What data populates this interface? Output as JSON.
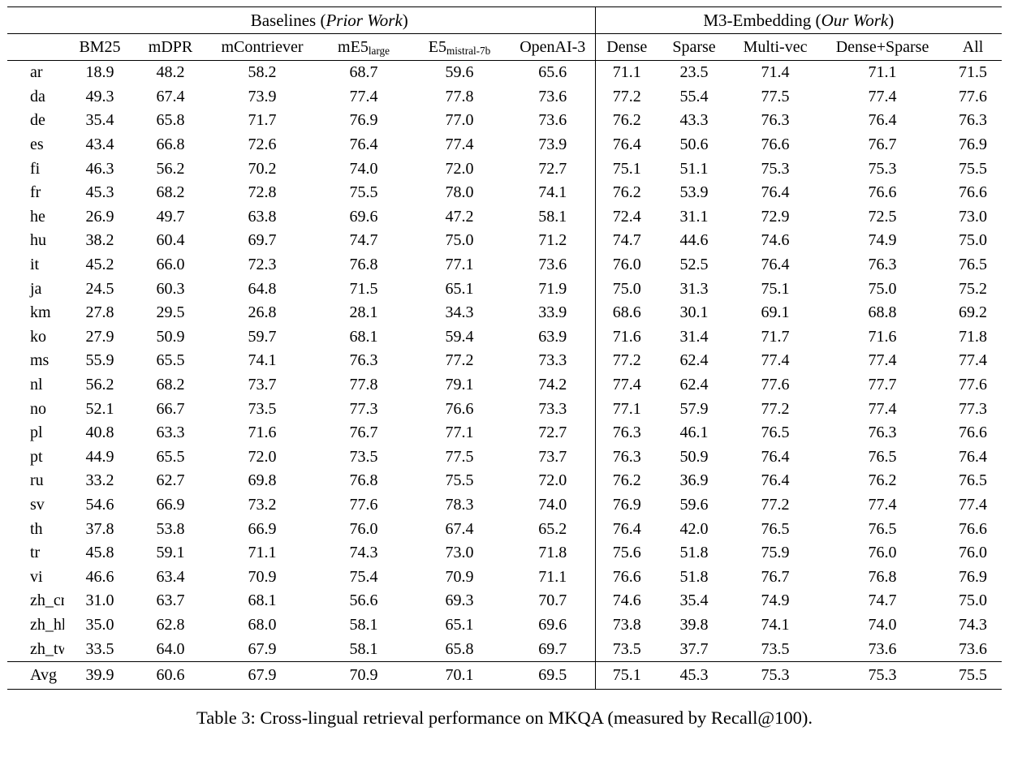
{
  "caption": "Table 3: Cross-lingual retrieval performance on MKQA (measured by Recall@100).",
  "colors": {
    "text": "#000000",
    "background": "#ffffff",
    "rule": "#000000"
  },
  "table": {
    "group_headers": [
      {
        "prefix": "Baselines (",
        "italic": "Prior Work",
        "suffix": ")"
      },
      {
        "prefix": "M3-Embedding (",
        "italic": "Our Work",
        "suffix": ")"
      }
    ],
    "corner_label": "",
    "columns": [
      {
        "label": "BM25",
        "sub": ""
      },
      {
        "label": "mDPR",
        "sub": ""
      },
      {
        "label": "mContriever",
        "sub": ""
      },
      {
        "label": "mE5",
        "sub": "large"
      },
      {
        "label": "E5",
        "sub": "mistral-7b"
      },
      {
        "label": "OpenAI-3",
        "sub": ""
      },
      {
        "label": "Dense",
        "sub": ""
      },
      {
        "label": "Sparse",
        "sub": ""
      },
      {
        "label": "Multi-vec",
        "sub": ""
      },
      {
        "label": "Dense+Sparse",
        "sub": ""
      },
      {
        "label": "All",
        "sub": ""
      }
    ],
    "rows": [
      {
        "lang": "ar",
        "values": [
          "18.9",
          "48.2",
          "58.2",
          "68.7",
          "59.6",
          "65.6",
          "71.1",
          "23.5",
          "71.4",
          "71.1",
          "71.5"
        ],
        "bold": [
          10
        ]
      },
      {
        "lang": "da",
        "values": [
          "49.3",
          "67.4",
          "73.9",
          "77.4",
          "77.8",
          "73.6",
          "77.2",
          "55.4",
          "77.5",
          "77.4",
          "77.6"
        ],
        "bold": [
          4
        ]
      },
      {
        "lang": "de",
        "values": [
          "35.4",
          "65.8",
          "71.7",
          "76.9",
          "77.0",
          "73.6",
          "76.2",
          "43.3",
          "76.3",
          "76.4",
          "76.3"
        ],
        "bold": [
          4
        ]
      },
      {
        "lang": "es",
        "values": [
          "43.4",
          "66.8",
          "72.6",
          "76.4",
          "77.4",
          "73.9",
          "76.4",
          "50.6",
          "76.6",
          "76.7",
          "76.9"
        ],
        "bold": [
          4
        ]
      },
      {
        "lang": "fi",
        "values": [
          "46.3",
          "56.2",
          "70.2",
          "74.0",
          "72.0",
          "72.7",
          "75.1",
          "51.1",
          "75.3",
          "75.3",
          "75.5"
        ],
        "bold": [
          10
        ]
      },
      {
        "lang": "fr",
        "values": [
          "45.3",
          "68.2",
          "72.8",
          "75.5",
          "78.0",
          "74.1",
          "76.2",
          "53.9",
          "76.4",
          "76.6",
          "76.6"
        ],
        "bold": [
          4
        ]
      },
      {
        "lang": "he",
        "values": [
          "26.9",
          "49.7",
          "63.8",
          "69.6",
          "47.2",
          "58.1",
          "72.4",
          "31.1",
          "72.9",
          "72.5",
          "73.0"
        ],
        "bold": [
          10
        ]
      },
      {
        "lang": "hu",
        "values": [
          "38.2",
          "60.4",
          "69.7",
          "74.7",
          "75.0",
          "71.2",
          "74.7",
          "44.6",
          "74.6",
          "74.9",
          "75.0"
        ],
        "bold": [
          4,
          10
        ]
      },
      {
        "lang": "it",
        "values": [
          "45.2",
          "66.0",
          "72.3",
          "76.8",
          "77.1",
          "73.6",
          "76.0",
          "52.5",
          "76.4",
          "76.3",
          "76.5"
        ],
        "bold": [
          4
        ]
      },
      {
        "lang": "ja",
        "values": [
          "24.5",
          "60.3",
          "64.8",
          "71.5",
          "65.1",
          "71.9",
          "75.0",
          "31.3",
          "75.1",
          "75.0",
          "75.2"
        ],
        "bold": [
          10
        ]
      },
      {
        "lang": "km",
        "values": [
          "27.8",
          "29.5",
          "26.8",
          "28.1",
          "34.3",
          "33.9",
          "68.6",
          "30.1",
          "69.1",
          "68.8",
          "69.2"
        ],
        "bold": [
          10
        ]
      },
      {
        "lang": "ko",
        "values": [
          "27.9",
          "50.9",
          "59.7",
          "68.1",
          "59.4",
          "63.9",
          "71.6",
          "31.4",
          "71.7",
          "71.6",
          "71.8"
        ],
        "bold": [
          10
        ]
      },
      {
        "lang": "ms",
        "values": [
          "55.9",
          "65.5",
          "74.1",
          "76.3",
          "77.2",
          "73.3",
          "77.2",
          "62.4",
          "77.4",
          "77.4",
          "77.4"
        ],
        "bold": [
          8,
          9,
          10
        ]
      },
      {
        "lang": "nl",
        "values": [
          "56.2",
          "68.2",
          "73.7",
          "77.8",
          "79.1",
          "74.2",
          "77.4",
          "62.4",
          "77.6",
          "77.7",
          "77.6"
        ],
        "bold": [
          4
        ]
      },
      {
        "lang": "no",
        "values": [
          "52.1",
          "66.7",
          "73.5",
          "77.3",
          "76.6",
          "73.3",
          "77.1",
          "57.9",
          "77.2",
          "77.4",
          "77.3"
        ],
        "bold": [
          9
        ]
      },
      {
        "lang": "pl",
        "values": [
          "40.8",
          "63.3",
          "71.6",
          "76.7",
          "77.1",
          "72.7",
          "76.3",
          "46.1",
          "76.5",
          "76.3",
          "76.6"
        ],
        "bold": [
          4
        ]
      },
      {
        "lang": "pt",
        "values": [
          "44.9",
          "65.5",
          "72.0",
          "73.5",
          "77.5",
          "73.7",
          "76.3",
          "50.9",
          "76.4",
          "76.5",
          "76.4"
        ],
        "bold": [
          4
        ]
      },
      {
        "lang": "ru",
        "values": [
          "33.2",
          "62.7",
          "69.8",
          "76.8",
          "75.5",
          "72.0",
          "76.2",
          "36.9",
          "76.4",
          "76.2",
          "76.5"
        ],
        "bold": [
          3
        ]
      },
      {
        "lang": "sv",
        "values": [
          "54.6",
          "66.9",
          "73.2",
          "77.6",
          "78.3",
          "74.0",
          "76.9",
          "59.6",
          "77.2",
          "77.4",
          "77.4"
        ],
        "bold": [
          4
        ]
      },
      {
        "lang": "th",
        "values": [
          "37.8",
          "53.8",
          "66.9",
          "76.0",
          "67.4",
          "65.2",
          "76.4",
          "42.0",
          "76.5",
          "76.5",
          "76.6"
        ],
        "bold": [
          10
        ]
      },
      {
        "lang": "tr",
        "values": [
          "45.8",
          "59.1",
          "71.1",
          "74.3",
          "73.0",
          "71.8",
          "75.6",
          "51.8",
          "75.9",
          "76.0",
          "76.0"
        ],
        "bold": [
          9,
          10
        ]
      },
      {
        "lang": "vi",
        "values": [
          "46.6",
          "63.4",
          "70.9",
          "75.4",
          "70.9",
          "71.1",
          "76.6",
          "51.8",
          "76.7",
          "76.8",
          "76.9"
        ],
        "bold": [
          10
        ]
      },
      {
        "lang": "zh_cn",
        "values": [
          "31.0",
          "63.7",
          "68.1",
          "56.6",
          "69.3",
          "70.7",
          "74.6",
          "35.4",
          "74.9",
          "74.7",
          "75.0"
        ],
        "bold": [
          10
        ]
      },
      {
        "lang": "zh_hk",
        "values": [
          "35.0",
          "62.8",
          "68.0",
          "58.1",
          "65.1",
          "69.6",
          "73.8",
          "39.8",
          "74.1",
          "74.0",
          "74.3"
        ],
        "bold": [
          10
        ]
      },
      {
        "lang": "zh_tw",
        "values": [
          "33.5",
          "64.0",
          "67.9",
          "58.1",
          "65.8",
          "69.7",
          "73.5",
          "37.7",
          "73.5",
          "73.6",
          "73.6"
        ],
        "bold": [
          9,
          10
        ]
      }
    ],
    "avg_row": {
      "lang": "Avg",
      "values": [
        "39.9",
        "60.6",
        "67.9",
        "70.9",
        "70.1",
        "69.5",
        "75.1",
        "45.3",
        "75.3",
        "75.3",
        "75.5"
      ],
      "bold": [
        10
      ]
    }
  }
}
